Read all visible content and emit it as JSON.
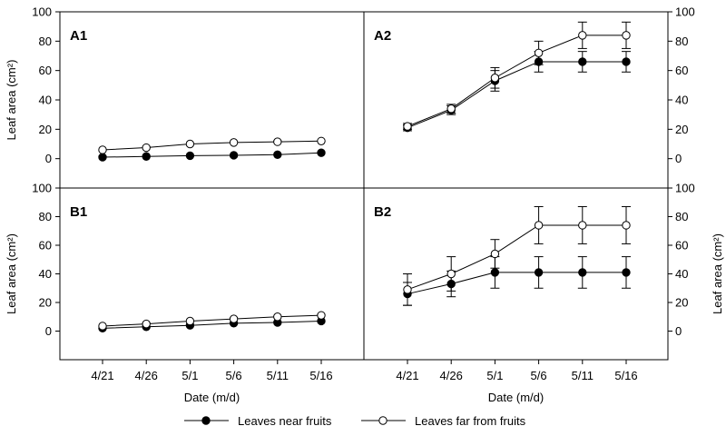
{
  "chart_data": [
    {
      "type": "line",
      "panel": "A1",
      "x": [
        "4/21",
        "4/26",
        "5/1",
        "5/6",
        "5/11",
        "5/16"
      ],
      "xlabel": "",
      "ylabel": "Leaf area (cm²)",
      "ylim": [
        -20,
        100
      ],
      "yticks": [
        0,
        20,
        40,
        60,
        80,
        100
      ],
      "series": [
        {
          "name": "Leaves near fruits",
          "marker": "filled-circle",
          "values": [
            1,
            1.5,
            2,
            2.3,
            2.7,
            4
          ],
          "errors": [
            0,
            0,
            0,
            0,
            0,
            0
          ]
        },
        {
          "name": "Leaves far from fruits",
          "marker": "open-circle",
          "values": [
            6,
            7.5,
            10,
            11,
            11.5,
            12
          ],
          "errors": [
            0,
            0,
            0,
            0,
            0,
            0
          ]
        }
      ]
    },
    {
      "type": "line",
      "panel": "A2",
      "x": [
        "4/21",
        "4/26",
        "5/1",
        "5/6",
        "5/11",
        "5/16"
      ],
      "xlabel": "",
      "ylabel": "",
      "ylim": [
        -20,
        100
      ],
      "yticks": [
        0,
        20,
        40,
        60,
        80,
        100
      ],
      "series": [
        {
          "name": "Leaves near fruits",
          "marker": "filled-circle",
          "values": [
            21,
            33,
            53,
            66,
            66,
            66
          ],
          "errors": [
            2,
            3,
            7,
            7,
            7,
            7
          ]
        },
        {
          "name": "Leaves far from fruits",
          "marker": "open-circle",
          "values": [
            22,
            34,
            55,
            72,
            84,
            84
          ],
          "errors": [
            2,
            3,
            7,
            8,
            9,
            9
          ]
        }
      ]
    },
    {
      "type": "line",
      "panel": "B1",
      "x": [
        "4/21",
        "4/26",
        "5/1",
        "5/6",
        "5/11",
        "5/16"
      ],
      "xlabel": "Date (m/d)",
      "ylabel": "Leaf area (cm²)",
      "ylim": [
        -20,
        100
      ],
      "yticks": [
        0,
        20,
        40,
        60,
        80,
        100
      ],
      "series": [
        {
          "name": "Leaves near fruits",
          "marker": "filled-circle",
          "values": [
            2,
            3,
            4,
            5.5,
            6,
            7
          ],
          "errors": [
            0,
            0,
            0,
            0,
            0,
            0
          ]
        },
        {
          "name": "Leaves far from fruits",
          "marker": "open-circle",
          "values": [
            3.5,
            5,
            7,
            8.5,
            10,
            11
          ],
          "errors": [
            0,
            0,
            0,
            0,
            0,
            0
          ]
        }
      ]
    },
    {
      "type": "line",
      "panel": "B2",
      "x": [
        "4/21",
        "4/26",
        "5/1",
        "5/6",
        "5/11",
        "5/16"
      ],
      "xlabel": "Date (m/d)",
      "ylabel": "Leaf area (cm²)",
      "ylim": [
        -20,
        100
      ],
      "yticks": [
        0,
        20,
        40,
        60,
        80,
        100
      ],
      "series": [
        {
          "name": "Leaves near fruits",
          "marker": "filled-circle",
          "values": [
            26,
            33,
            41,
            41,
            41,
            41
          ],
          "errors": [
            8,
            9,
            11,
            11,
            11,
            11
          ]
        },
        {
          "name": "Leaves far from fruits",
          "marker": "open-circle",
          "values": [
            29,
            40,
            54,
            74,
            74,
            74
          ],
          "errors": [
            11,
            12,
            10,
            13,
            13,
            13
          ]
        }
      ]
    }
  ],
  "legend": {
    "placement": "bottom",
    "items": [
      {
        "label": "Leaves near fruits",
        "marker": "filled-circle"
      },
      {
        "label": "Leaves far from fruits",
        "marker": "open-circle"
      }
    ]
  }
}
